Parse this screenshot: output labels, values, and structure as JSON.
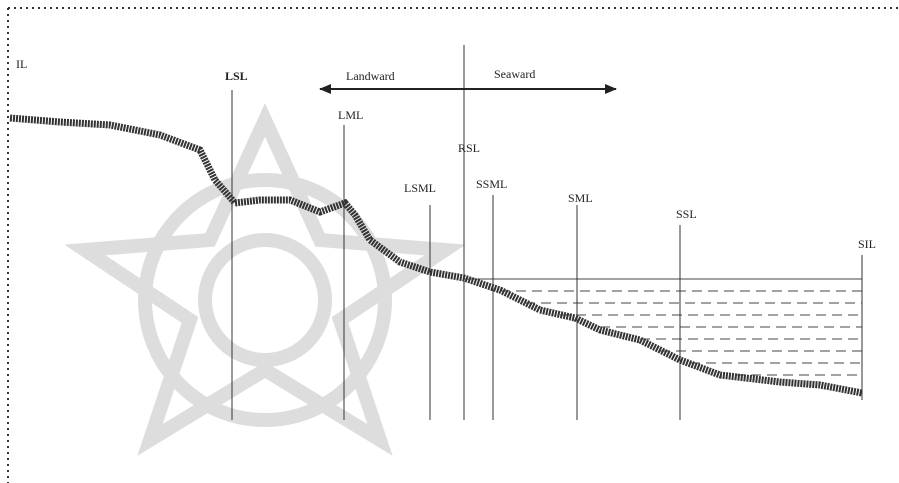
{
  "labels": {
    "il": "IL",
    "lsl": "LSL",
    "landward": "Landward",
    "seaward": "Seaward",
    "lml": "LML",
    "rsl": "RSL",
    "lsml": "LSML",
    "ssml": "SSML",
    "sml": "SML",
    "ssl": "SSL",
    "sil": "SIL"
  }
}
